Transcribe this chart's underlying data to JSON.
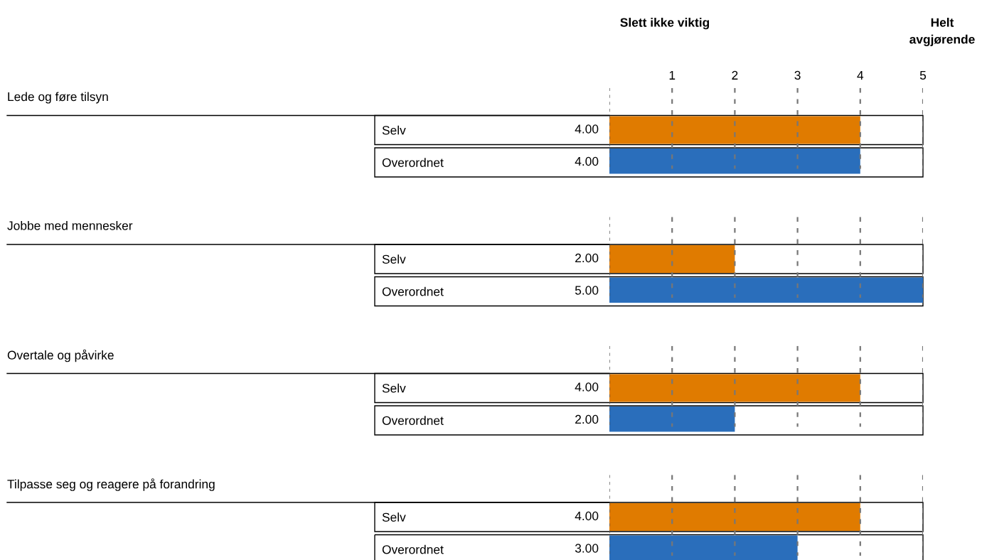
{
  "chart_data": [
    {
      "type": "bar",
      "orientation": "horizontal",
      "categories": [
        "Selv",
        "Overordnet"
      ],
      "values": [
        4,
        4
      ],
      "colors": [
        "#e07b00",
        "#2a6ebb"
      ],
      "value_labels": [
        "4.00",
        "4.00"
      ],
      "xlim": [
        0,
        5
      ],
      "xticks": [
        1,
        2,
        3,
        4,
        5
      ],
      "grid": "x",
      "line_style": "dashed",
      "tick_labels": "x",
      "annotations": [
        "Lede og føre tilsyn",
        "Slett ikke viktig",
        "Helt avgjørende"
      ]
    },
    {
      "type": "bar",
      "orientation": "horizontal",
      "categories": [
        "Selv",
        "Overordnet"
      ],
      "values": [
        2,
        5
      ],
      "colors": [
        "#e07b00",
        "#2a6ebb"
      ],
      "value_labels": [
        "2.00",
        "5.00"
      ],
      "xlim": [
        0,
        5
      ],
      "xticks": [
        1,
        2,
        3,
        4,
        5
      ],
      "grid": "x",
      "line_style": "dashed",
      "tick_labels": false,
      "annotations": [
        "Jobbe med mennesker"
      ]
    },
    {
      "type": "bar",
      "orientation": "horizontal",
      "categories": [
        "Selv",
        "Overordnet"
      ],
      "values": [
        4,
        2
      ],
      "colors": [
        "#e07b00",
        "#2a6ebb"
      ],
      "value_labels": [
        "4.00",
        "2.00"
      ],
      "xlim": [
        0,
        5
      ],
      "xticks": [
        1,
        2,
        3,
        4,
        5
      ],
      "grid": "x",
      "line_style": "dashed",
      "tick_labels": false,
      "annotations": [
        "Overtale og påvirke"
      ]
    },
    {
      "type": "bar",
      "orientation": "horizontal",
      "categories": [
        "Selv",
        "Overordnet"
      ],
      "values": [
        4,
        3
      ],
      "colors": [
        "#e07b00",
        "#2a6ebb"
      ],
      "value_labels": [
        "4.00",
        "3.00"
      ],
      "xlim": [
        0,
        5
      ],
      "xticks": [
        1,
        2,
        3,
        4,
        5
      ],
      "grid": "x",
      "line_style": "dashed",
      "tick_labels": false,
      "annotations": [
        "Tilpasse seg og reagere på forandring"
      ]
    }
  ]
}
